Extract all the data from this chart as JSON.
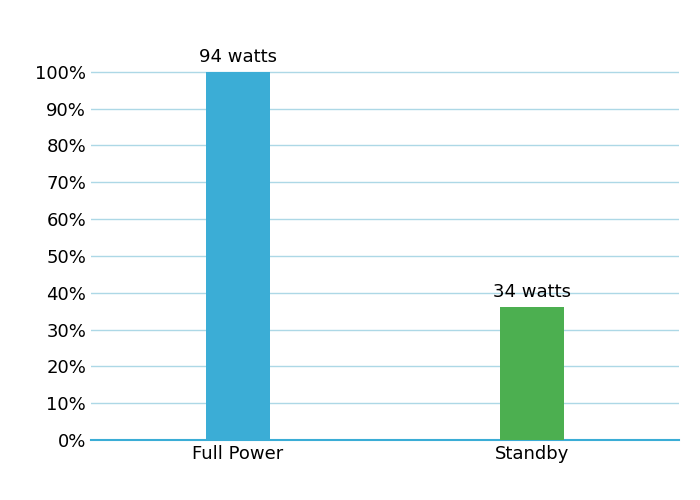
{
  "categories": [
    "Full Power",
    "Standby"
  ],
  "values": [
    100,
    36.17
  ],
  "labels": [
    "94 watts",
    "34 watts"
  ],
  "bar_colors": [
    "#3BADD6",
    "#4CAF50"
  ],
  "ylim": [
    0,
    110
  ],
  "yticks": [
    0,
    10,
    20,
    30,
    40,
    50,
    60,
    70,
    80,
    90,
    100
  ],
  "grid_color": "#ADD8E6",
  "axis_color": "#3BADD6",
  "background_color": "#ffffff",
  "label_fontsize": 13,
  "tick_fontsize": 13,
  "bar_width": 0.22
}
